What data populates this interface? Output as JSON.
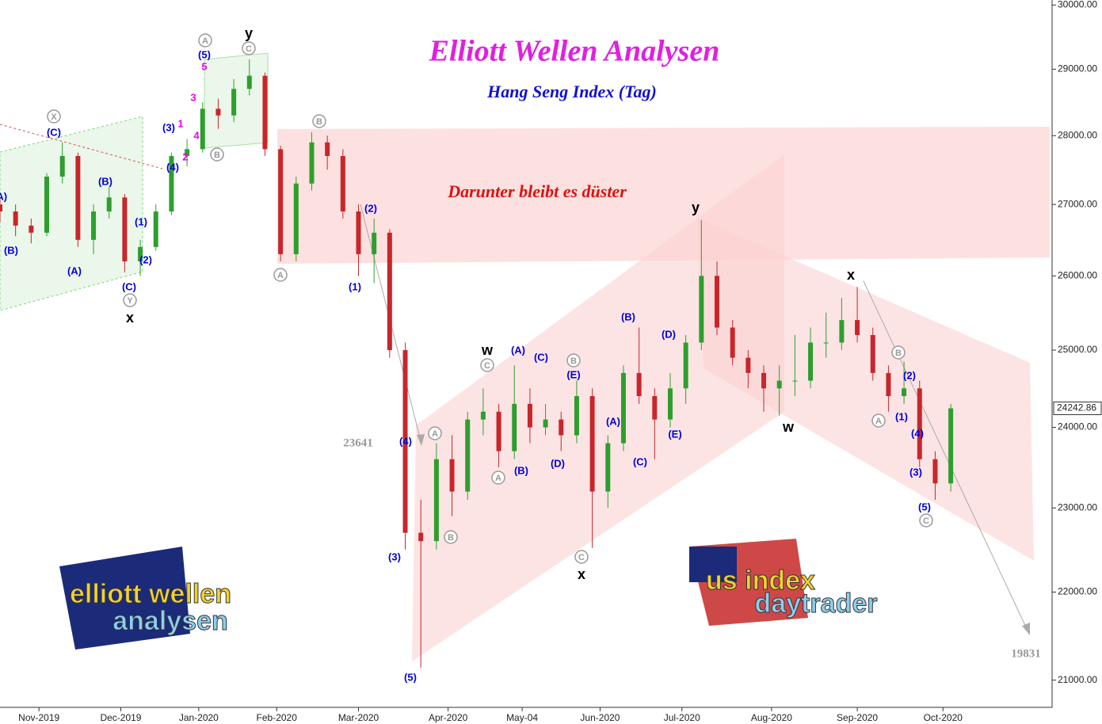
{
  "chart_data": {
    "type": "candlestick",
    "title": "Elliott Wellen Analysen",
    "subtitle": "Hang Seng Index (Tag)",
    "annotation": "Darunter bleibt es düster",
    "targets": [
      "23641",
      "19831"
    ],
    "log_scale": true,
    "up_color": "#2e9e2e",
    "down_color": "#c8262b",
    "ylim": [
      20700,
      30080
    ],
    "yticks": [
      {
        "value": 21000,
        "label": "21000.00"
      },
      {
        "value": 22000,
        "label": "22000.00"
      },
      {
        "value": 23000,
        "label": "23000.00"
      },
      {
        "value": 24000,
        "label": "24000.00"
      },
      {
        "value": 25000,
        "label": "25000.00"
      },
      {
        "value": 26000,
        "label": "26000.00"
      },
      {
        "value": 27000,
        "label": "27000.00"
      },
      {
        "value": 28000,
        "label": "28000.00"
      },
      {
        "value": 29000,
        "label": "29000.00"
      },
      {
        "value": 30000,
        "label": "30000.00"
      }
    ],
    "last_price": {
      "value": 24242.86,
      "label": "24242.86"
    },
    "xlim": [
      0,
      270
    ],
    "xticks": [
      {
        "value": 10,
        "label": "Nov-2019"
      },
      {
        "value": 31,
        "label": "Dec-2019"
      },
      {
        "value": 51,
        "label": "Jan-2020"
      },
      {
        "value": 71,
        "label": "Feb-2020"
      },
      {
        "value": 92,
        "label": "Mar-2020"
      },
      {
        "value": 115,
        "label": "Apr-2020"
      },
      {
        "value": 134,
        "label": "May-04"
      },
      {
        "value": 154,
        "label": "Jun-2020"
      },
      {
        "value": 175,
        "label": "Jul-2020"
      },
      {
        "value": 198,
        "label": "Aug-2020"
      },
      {
        "value": 220,
        "label": "Sep-2020"
      },
      {
        "value": 242,
        "label": "Oct-2020"
      }
    ],
    "x": [
      0,
      4,
      8,
      12,
      16,
      20,
      24,
      28,
      32,
      36,
      40,
      44,
      48,
      52,
      56,
      60,
      64,
      68,
      72,
      76,
      80,
      84,
      88,
      92,
      96,
      100,
      104,
      108,
      112,
      116,
      120,
      124,
      128,
      132,
      136,
      140,
      144,
      148,
      152,
      156,
      160,
      164,
      168,
      172,
      176,
      180,
      184,
      188,
      192,
      196,
      200,
      204,
      208,
      212,
      216,
      220,
      224,
      228,
      232,
      236,
      240,
      244
    ],
    "ohlc": [
      [
        27000,
        27100,
        26750,
        26900
      ],
      [
        26900,
        27000,
        26550,
        26700
      ],
      [
        26700,
        26800,
        26450,
        26600
      ],
      [
        26600,
        27450,
        26550,
        27400
      ],
      [
        27400,
        27900,
        27300,
        27700
      ],
      [
        27700,
        27750,
        26400,
        26500
      ],
      [
        26500,
        27000,
        26300,
        26900
      ],
      [
        26900,
        27250,
        26800,
        27100
      ],
      [
        27100,
        27150,
        26050,
        26200
      ],
      [
        26200,
        26500,
        26000,
        26400
      ],
      [
        26400,
        27000,
        26350,
        26900
      ],
      [
        26900,
        27750,
        26850,
        27700
      ],
      [
        27700,
        27950,
        27550,
        27800
      ],
      [
        27800,
        28500,
        27750,
        28400
      ],
      [
        28400,
        28550,
        28100,
        28300
      ],
      [
        28300,
        28850,
        28200,
        28700
      ],
      [
        28700,
        29150,
        28600,
        28900
      ],
      [
        28900,
        28950,
        27700,
        27800
      ],
      [
        27800,
        27850,
        26200,
        26300
      ],
      [
        26300,
        27400,
        26200,
        27300
      ],
      [
        27300,
        28050,
        27200,
        27900
      ],
      [
        27900,
        28000,
        27500,
        27700
      ],
      [
        27700,
        27800,
        26800,
        26900
      ],
      [
        26900,
        27000,
        26000,
        26300
      ],
      [
        26300,
        26800,
        25900,
        26600
      ],
      [
        26600,
        26650,
        24900,
        25000
      ],
      [
        25000,
        25100,
        22500,
        22700
      ],
      [
        22700,
        23100,
        21140,
        22600
      ],
      [
        22600,
        23800,
        22500,
        23600
      ],
      [
        23600,
        23900,
        22900,
        23200
      ],
      [
        23200,
        24200,
        23100,
        24100
      ],
      [
        24100,
        24500,
        23900,
        24200
      ],
      [
        24200,
        24300,
        23500,
        23700
      ],
      [
        23700,
        24800,
        23600,
        24300
      ],
      [
        24300,
        24500,
        23800,
        24000
      ],
      [
        24000,
        24300,
        23900,
        24100
      ],
      [
        24100,
        24200,
        23700,
        23900
      ],
      [
        23900,
        24600,
        23800,
        24400
      ],
      [
        24400,
        24500,
        22520,
        23200
      ],
      [
        23200,
        23900,
        23000,
        23800
      ],
      [
        23800,
        24800,
        23700,
        24700
      ],
      [
        24700,
        25300,
        24300,
        24400
      ],
      [
        24400,
        24500,
        23600,
        24100
      ],
      [
        24100,
        24700,
        24000,
        24500
      ],
      [
        24500,
        25200,
        24300,
        25100
      ],
      [
        25100,
        26780,
        25000,
        26000
      ],
      [
        26000,
        26200,
        25200,
        25300
      ],
      [
        25300,
        25400,
        24800,
        24900
      ],
      [
        24900,
        25000,
        24500,
        24700
      ],
      [
        24700,
        24800,
        24200,
        24500
      ],
      [
        24500,
        24800,
        24150,
        24600
      ],
      [
        24600,
        25200,
        24400,
        24600
      ],
      [
        24600,
        25300,
        24500,
        25100
      ],
      [
        25100,
        25500,
        24900,
        25100
      ],
      [
        25100,
        25700,
        25000,
        25400
      ],
      [
        25400,
        25850,
        25100,
        25200
      ],
      [
        25200,
        25300,
        24600,
        24700
      ],
      [
        24700,
        24800,
        24200,
        24400
      ],
      [
        24400,
        24850,
        24300,
        24500
      ],
      [
        24500,
        24600,
        23500,
        23600
      ],
      [
        23600,
        23700,
        23100,
        23300
      ],
      [
        23300,
        24300,
        23200,
        24242.86
      ]
    ],
    "wave_labels": [
      {
        "color": "#0000dd",
        "labels": [
          "(A)",
          "(B)",
          "(C)",
          "(B)",
          "(A)",
          "(C)",
          "(1)",
          "(2)",
          "(3)",
          "(4)",
          "(5)",
          "(2)",
          "(1)",
          "(4)",
          "(3)",
          "(5)",
          "(A)",
          "(C)",
          "(E)",
          "(B)",
          "(D)",
          "(B)",
          "(D)",
          "(A)",
          "(C)",
          "(E)",
          "(2)",
          "(1)",
          "(4)",
          "(3)",
          "(5)"
        ]
      },
      {
        "color": "#000000",
        "labels": [
          "y",
          "x",
          "w",
          "x",
          "y",
          "x",
          "w"
        ]
      },
      {
        "color": "#999999",
        "circled": true,
        "labels": [
          "A",
          "C",
          "B",
          "X",
          "Y",
          "B",
          "A",
          "C",
          "A",
          "A",
          "B",
          "B",
          "C",
          "B",
          "A",
          "C"
        ]
      },
      {
        "color": "#ee00ee",
        "labels": [
          "5",
          "3",
          "1",
          "4",
          "2"
        ]
      }
    ],
    "logos": [
      "elliott wellen",
      "analysen",
      "us index",
      "daytrader"
    ]
  }
}
